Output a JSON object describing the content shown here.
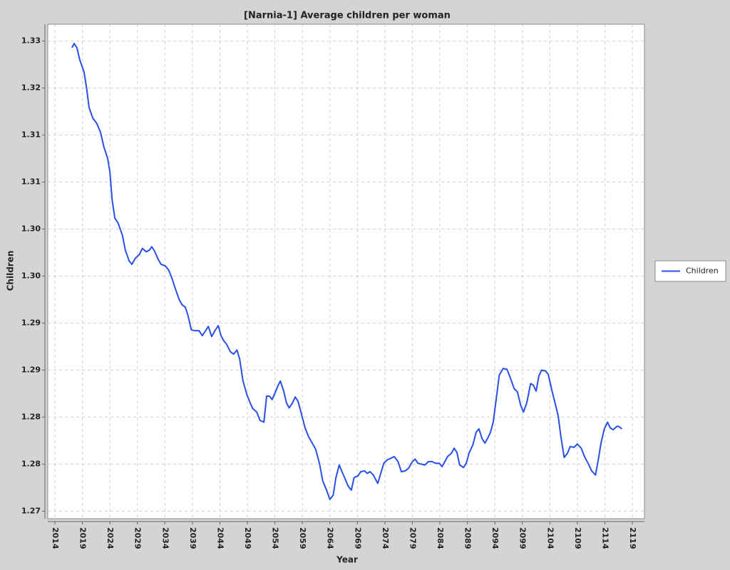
{
  "chart_data": {
    "type": "line",
    "title": "[Narnia-1] Average children per woman",
    "x_label": "Year",
    "y_label": "Children",
    "x": [
      2017.1,
      2017.5,
      2018.0,
      2018.5,
      2019.3,
      2019.8,
      2020.2,
      2020.9,
      2021.6,
      2022.3,
      2022.9,
      2023.6,
      2024.0,
      2024.4,
      2024.9,
      2025.5,
      2026.3,
      2026.8,
      2027.5,
      2028.0,
      2028.6,
      2029.4,
      2029.9,
      2030.6,
      2031.2,
      2031.6,
      2032.1,
      2032.7,
      2033.3,
      2034.1,
      2034.7,
      2035.3,
      2035.9,
      2036.6,
      2037.1,
      2037.7,
      2038.2,
      2038.8,
      2039.4,
      2040.2,
      2040.8,
      2041.5,
      2041.9,
      2042.5,
      2043.2,
      2043.7,
      2044.2,
      2044.7,
      2045.2,
      2045.9,
      2046.5,
      2047.1,
      2047.6,
      2048.2,
      2048.9,
      2049.5,
      2050.0,
      2050.7,
      2051.3,
      2052.0,
      2052.5,
      2053.0,
      2053.5,
      2054.1,
      2054.6,
      2055.0,
      2055.6,
      2056.1,
      2056.6,
      2057.2,
      2057.7,
      2058.2,
      2058.9,
      2059.5,
      2060.1,
      2060.8,
      2061.4,
      2062.1,
      2062.7,
      2063.4,
      2064.0,
      2064.6,
      2065.1,
      2065.7,
      2066.2,
      2066.8,
      2067.3,
      2067.9,
      2068.4,
      2069.1,
      2069.6,
      2070.3,
      2070.8,
      2071.3,
      2071.9,
      2072.7,
      2073.2,
      2073.8,
      2074.4,
      2075.1,
      2075.7,
      2076.4,
      2077.0,
      2077.7,
      2078.3,
      2079.0,
      2079.5,
      2080.0,
      2081.3,
      2081.9,
      2082.6,
      2083.2,
      2083.9,
      2084.4,
      2084.9,
      2085.4,
      2086.1,
      2086.6,
      2087.1,
      2087.6,
      2088.3,
      2088.8,
      2089.3,
      2090.0,
      2090.6,
      2091.1,
      2091.7,
      2092.2,
      2092.7,
      2093.2,
      2093.7,
      2094.2,
      2094.8,
      2095.5,
      2096.2,
      2096.8,
      2097.5,
      2098.1,
      2098.7,
      2099.2,
      2099.8,
      2100.5,
      2101.0,
      2101.5,
      2102.0,
      2102.5,
      2103.2,
      2103.7,
      2104.4,
      2104.9,
      2105.5,
      2106.0,
      2106.6,
      2107.2,
      2107.7,
      2108.4,
      2109.0,
      2109.7,
      2110.3,
      2111.1,
      2111.6,
      2112.3,
      2112.8,
      2113.3,
      2113.9,
      2114.5,
      2115.0,
      2115.5,
      2116.2,
      2116.5,
      2117.1
    ],
    "series": [
      {
        "name": "Children",
        "color": "#2850e8",
        "values": [
          1.3252,
          1.3257,
          1.3252,
          1.3238,
          1.3223,
          1.3202,
          1.3181,
          1.3168,
          1.3162,
          1.3151,
          1.3134,
          1.312,
          1.3104,
          1.3071,
          1.3049,
          1.3043,
          1.3028,
          1.3011,
          1.2998,
          1.2994,
          1.3001,
          1.3006,
          1.3013,
          1.3009,
          1.3011,
          1.3015,
          1.301,
          1.3001,
          1.2994,
          1.2992,
          1.2987,
          1.2977,
          1.2965,
          1.2952,
          1.2946,
          1.2943,
          1.2933,
          1.2916,
          1.2915,
          1.2915,
          1.2909,
          1.2916,
          1.292,
          1.2908,
          1.2916,
          1.2921,
          1.2909,
          1.2903,
          1.2899,
          1.289,
          1.2887,
          1.2892,
          1.2881,
          1.2855,
          1.2839,
          1.2829,
          1.2822,
          1.2818,
          1.2808,
          1.2806,
          1.2837,
          1.2837,
          1.2833,
          1.2842,
          1.285,
          1.2855,
          1.2843,
          1.2829,
          1.2823,
          1.2829,
          1.2836,
          1.2831,
          1.2814,
          1.2799,
          1.2789,
          1.2781,
          1.2774,
          1.2757,
          1.2736,
          1.2725,
          1.2714,
          1.2719,
          1.274,
          1.2755,
          1.2747,
          1.2738,
          1.273,
          1.2725,
          1.274,
          1.2742,
          1.2747,
          1.2748,
          1.2745,
          1.2747,
          1.2743,
          1.2733,
          1.2744,
          1.2757,
          1.2761,
          1.2763,
          1.2765,
          1.2759,
          1.2747,
          1.2748,
          1.2751,
          1.2759,
          1.2762,
          1.2757,
          1.2755,
          1.2759,
          1.2759,
          1.2757,
          1.2757,
          1.2753,
          1.2759,
          1.2765,
          1.2769,
          1.2775,
          1.277,
          1.2755,
          1.2752,
          1.2757,
          1.2769,
          1.2779,
          1.2794,
          1.2798,
          1.2786,
          1.2781,
          1.2787,
          1.2794,
          1.2806,
          1.2831,
          1.2862,
          1.287,
          1.2869,
          1.2859,
          1.2846,
          1.2842,
          1.2826,
          1.2818,
          1.2829,
          1.2852,
          1.285,
          1.2843,
          1.2861,
          1.2868,
          1.2867,
          1.2863,
          1.2843,
          1.283,
          1.2814,
          1.2789,
          1.2764,
          1.2769,
          1.2777,
          1.2776,
          1.278,
          1.2775,
          1.2765,
          1.2755,
          1.2748,
          1.2743,
          1.2761,
          1.2781,
          1.2798,
          1.2806,
          1.2799,
          1.2797,
          1.2801,
          1.2801,
          1.2798
        ]
      }
    ],
    "xlim": [
      2012.7,
      2121.2
    ],
    "xticks": [
      2014,
      2019,
      2024,
      2029,
      2034,
      2039,
      2044,
      2049,
      2054,
      2059,
      2064,
      2069,
      2074,
      2079,
      2084,
      2089,
      2094,
      2099,
      2104,
      2109,
      2114,
      2119
    ],
    "ylim": [
      1.2691,
      1.328
    ],
    "yticks": [
      {
        "value": 1.27,
        "label": "1.27"
      },
      {
        "value": 1.2756,
        "label": "1.28"
      },
      {
        "value": 1.2812,
        "label": "1.28"
      },
      {
        "value": 1.2868,
        "label": "1.29"
      },
      {
        "value": 1.2924,
        "label": "1.29"
      },
      {
        "value": 1.298,
        "label": "1.30"
      },
      {
        "value": 1.3036,
        "label": "1.30"
      },
      {
        "value": 1.3092,
        "label": "1.31"
      },
      {
        "value": 1.3148,
        "label": "1.31"
      },
      {
        "value": 1.3204,
        "label": "1.32"
      },
      {
        "value": 1.326,
        "label": "1.33"
      }
    ],
    "grid": true,
    "legend": "right"
  }
}
